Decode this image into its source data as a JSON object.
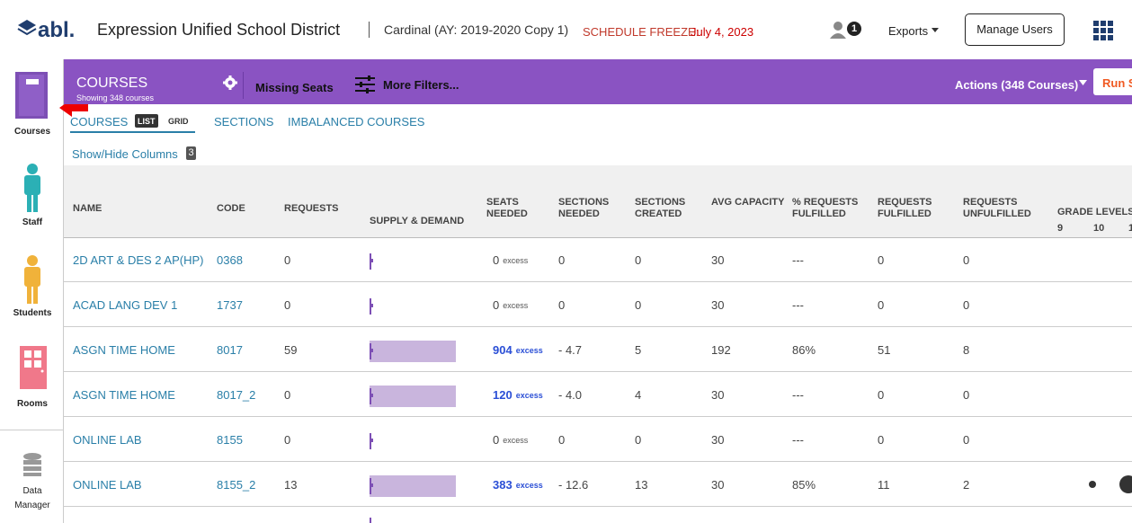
{
  "header": {
    "logo": "abl.",
    "district": "Expression Unified School District",
    "schedule": "Cardinal (AY: 2019-2020 Copy 1)",
    "freeze_label": "SCHEDULE FREEZE:",
    "freeze_date": "July 4, 2023",
    "notifications": "1",
    "exports": "Exports",
    "manage_users": "Manage Users"
  },
  "sidebar": [
    "Courses",
    "Staff",
    "Students",
    "Rooms",
    "Data Manager"
  ],
  "toolbar": {
    "title": "COURSES",
    "subtitle": "Showing 348 courses",
    "missing_seats": "Missing Seats",
    "more_filters": "More Filters...",
    "actions": "Actions (348 Courses)",
    "run": "Run S"
  },
  "tabs": {
    "courses": "COURSES",
    "list": "LIST",
    "grid": "GRID",
    "sections": "SECTIONS",
    "imbalanced": "IMBALANCED COURSES"
  },
  "show_hide": {
    "label": "Show/Hide Columns",
    "count": "3"
  },
  "table": {
    "columns": [
      "NAME",
      "CODE",
      "REQUESTS",
      "SUPPLY & DEMAND",
      "SEATS NEEDED",
      "SECTIONS NEEDED",
      "SECTIONS CREATED",
      "AVG CAPACITY",
      "% REQUESTS FULFILLED",
      "REQUESTS FULFILLED",
      "REQUESTS UNFULFILLED",
      "GRADE LEVELS"
    ],
    "grade_levels": [
      "9",
      "10",
      "1"
    ],
    "rows": [
      [
        "2D ART & DES 2 AP(HP)",
        "0368",
        "0",
        "0",
        "excess",
        "0",
        "0",
        "30",
        "---",
        "0",
        "0"
      ],
      [
        "ACAD LANG DEV 1",
        "1737",
        "0",
        "0",
        "excess",
        "0",
        "0",
        "30",
        "---",
        "0",
        "0"
      ],
      [
        "ASGN TIME HOME",
        "8017",
        "59",
        "904",
        "excess",
        "- 4.7",
        "5",
        "192",
        "86%",
        "51",
        "8"
      ],
      [
        "ASGN TIME HOME",
        "8017_2",
        "0",
        "120",
        "excess",
        "- 4.0",
        "4",
        "30",
        "---",
        "0",
        "0"
      ],
      [
        "ONLINE LAB",
        "8155",
        "0",
        "0",
        "excess",
        "0",
        "0",
        "30",
        "---",
        "0",
        "0"
      ],
      [
        "ONLINE LAB",
        "8155_2",
        "13",
        "383",
        "excess",
        "- 12.6",
        "13",
        "30",
        "85%",
        "11",
        "2"
      ]
    ]
  }
}
